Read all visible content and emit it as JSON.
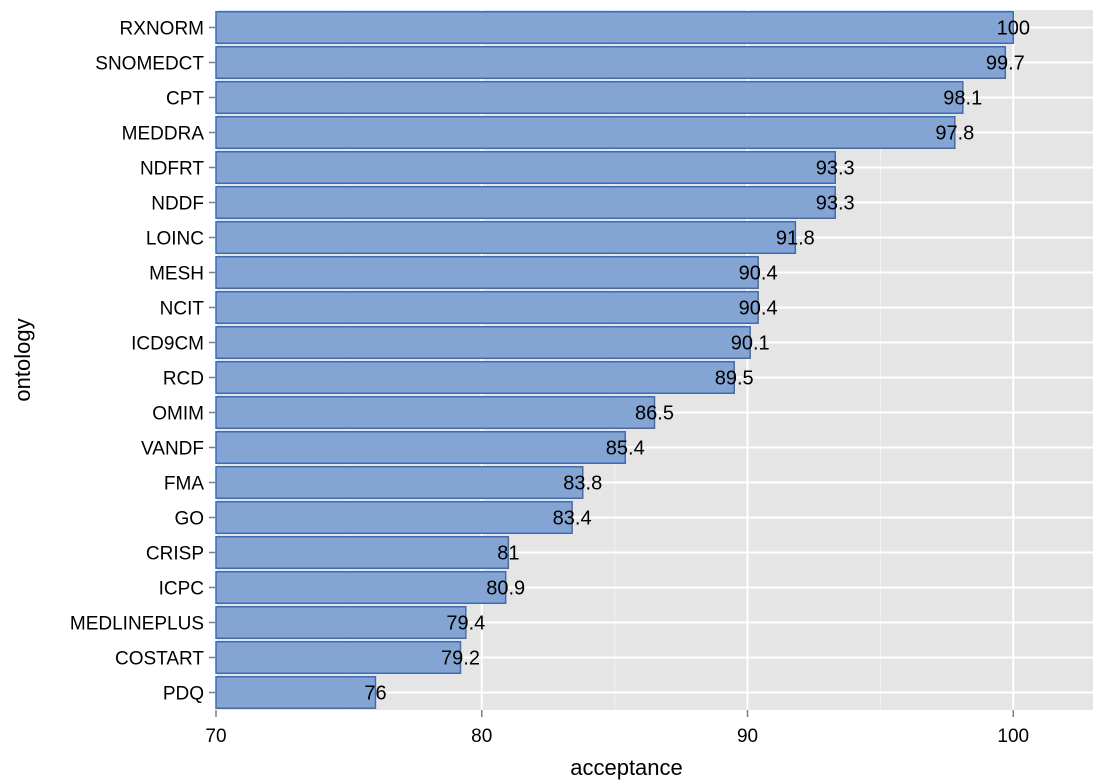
{
  "colors": {
    "panel_background": "#e5e5e5",
    "grid_major": "#ffffff",
    "grid_minor": "#f2f2f2",
    "bar_fill": "#84a4d4",
    "bar_stroke": "#3f6db5",
    "tick_mark": "#7f7f7f",
    "text": "#000000"
  },
  "chart_data": {
    "type": "bar",
    "orientation": "horizontal",
    "title": "",
    "xlabel": "acceptance",
    "ylabel": "ontology",
    "xlim": [
      70,
      103
    ],
    "x_ticks": [
      70,
      80,
      90,
      100
    ],
    "x_tick_labels": [
      "70",
      "80",
      "90",
      "100"
    ],
    "grid": true,
    "legend": "none",
    "categories": [
      "RXNORM",
      "SNOMEDCT",
      "CPT",
      "MEDDRA",
      "NDFRT",
      "NDDF",
      "LOINC",
      "MESH",
      "NCIT",
      "ICD9CM",
      "RCD",
      "OMIM",
      "VANDF",
      "FMA",
      "GO",
      "CRISP",
      "ICPC",
      "MEDLINEPLUS",
      "COSTART",
      "PDQ"
    ],
    "values": [
      100,
      99.7,
      98.1,
      97.8,
      93.3,
      93.3,
      91.8,
      90.4,
      90.4,
      90.1,
      89.5,
      86.5,
      85.4,
      83.8,
      83.4,
      81,
      80.9,
      79.4,
      79.2,
      76
    ],
    "value_labels": [
      "100",
      "99.7",
      "98.1",
      "97.8",
      "93.3",
      "93.3",
      "91.8",
      "90.4",
      "90.4",
      "90.1",
      "89.5",
      "86.5",
      "85.4",
      "83.8",
      "83.4",
      "81",
      "80.9",
      "79.4",
      "79.2",
      "76"
    ]
  }
}
